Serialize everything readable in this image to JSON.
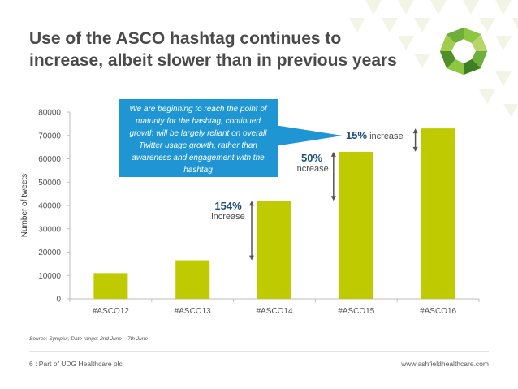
{
  "slide": {
    "title": "Use of the ASCO hashtag continues to increase, albeit slower than in previous years",
    "callout": "We are beginning to reach the point of maturity for the hashtag, continued growth will be largely reliant on overall Twitter usage growth, rather than awareness and engagement with the hashtag",
    "source": "Source: Symplur, Date range: 2nd June – 7th June",
    "footer_left": "6 :  Part of UDG Healthcare plc",
    "footer_right": "www.ashfieldhealthcare.com"
  },
  "annotations": [
    {
      "pct": "154%",
      "text": "increase"
    },
    {
      "pct": "50%",
      "text": "increase"
    },
    {
      "pct": "15%",
      "text": "increase"
    }
  ],
  "colors": {
    "bar": "#bfcb00",
    "title": "#4a4a4a",
    "callout": "#1f96d3",
    "annotation_pct": "#1f4e79",
    "arrow": "#555555",
    "logo_green": "#8dc63f"
  },
  "chart_data": {
    "type": "bar",
    "categories": [
      "#ASCO12",
      "#ASCO13",
      "#ASCO14",
      "#ASCO15",
      "#ASCO16"
    ],
    "values": [
      11000,
      16500,
      42000,
      63000,
      73000
    ],
    "ylabel": "Number of tweets",
    "ylim": [
      0,
      80000
    ],
    "yticks": [
      0,
      10000,
      20000,
      30000,
      40000,
      50000,
      60000,
      70000,
      80000
    ],
    "grid": false,
    "legend": "none"
  }
}
